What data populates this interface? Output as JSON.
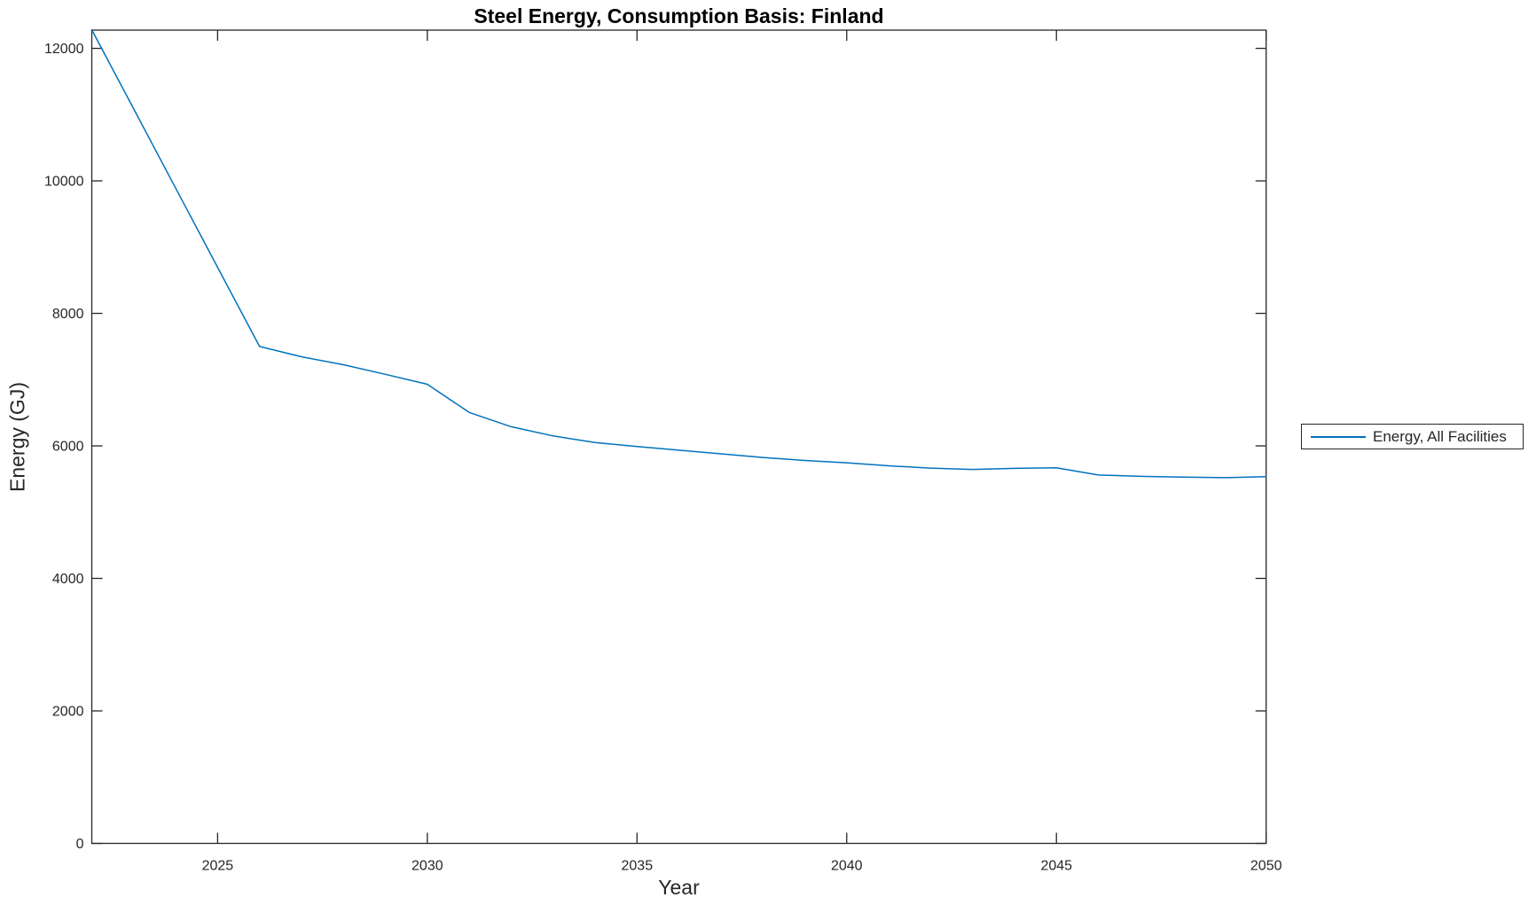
{
  "style": {
    "axis_color": "#262626",
    "text_color": "#262626",
    "background_color": "#ffffff",
    "line_color": "#0072BD"
  },
  "chart_data": {
    "type": "line",
    "title": "Steel Energy, Consumption Basis: Finland",
    "xlabel": "Year",
    "ylabel": "Energy (GJ)",
    "xlim": [
      2022,
      2050
    ],
    "ylim": [
      0,
      12275
    ],
    "x_ticks": [
      2025,
      2030,
      2035,
      2040,
      2045,
      2050
    ],
    "y_ticks": [
      0,
      2000,
      4000,
      6000,
      8000,
      10000,
      12000
    ],
    "grid": false,
    "box": true,
    "legend": {
      "position": "right-outside",
      "entries": [
        {
          "label": "Energy, All Facilities",
          "color": "#0072BD"
        }
      ]
    },
    "series": [
      {
        "name": "Energy, All Facilities",
        "color": "#0072BD",
        "x": [
          2022,
          2023,
          2024,
          2025,
          2026,
          2027,
          2028,
          2029,
          2030,
          2031,
          2032,
          2033,
          2034,
          2035,
          2036,
          2037,
          2038,
          2039,
          2040,
          2041,
          2042,
          2043,
          2044,
          2045,
          2046,
          2047,
          2048,
          2049,
          2050
        ],
        "values": [
          12280,
          11085,
          9890,
          8695,
          7500,
          7345,
          7225,
          7080,
          6930,
          6505,
          6290,
          6150,
          6050,
          5990,
          5935,
          5880,
          5825,
          5780,
          5745,
          5700,
          5665,
          5645,
          5660,
          5670,
          5560,
          5540,
          5530,
          5520,
          5535
        ]
      }
    ]
  }
}
